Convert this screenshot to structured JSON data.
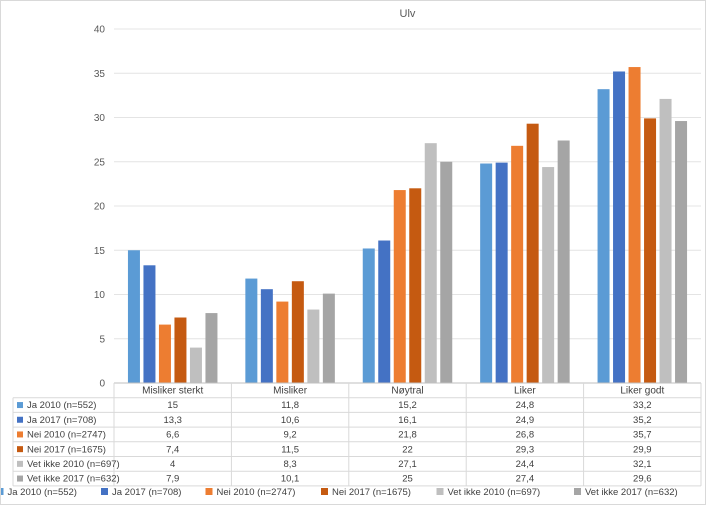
{
  "chart_data": {
    "type": "bar",
    "title": "Ulv",
    "xlabel": "",
    "ylabel": "",
    "ylim": [
      0,
      40
    ],
    "yticks": [
      "0",
      "5",
      "10",
      "15",
      "20",
      "25",
      "30",
      "35",
      "40"
    ],
    "categories": [
      "Misliker sterkt",
      "Misliker",
      "Nøytral",
      "Liker",
      "Liker godt"
    ],
    "series": [
      {
        "name": "Ja 2010 (n=552)",
        "color": "#5b9bd5",
        "values": [
          15,
          11.8,
          15.2,
          24.8,
          33.2
        ],
        "labels": [
          "15",
          "11,8",
          "15,2",
          "24,8",
          "33,2"
        ]
      },
      {
        "name": "Ja 2017 (n=708)",
        "color": "#4472c4",
        "values": [
          13.3,
          10.6,
          16.1,
          24.9,
          35.2
        ],
        "labels": [
          "13,3",
          "10,6",
          "16,1",
          "24,9",
          "35,2"
        ]
      },
      {
        "name": "Nei 2010 (n=2747)",
        "color": "#ed7d31",
        "values": [
          6.6,
          9.2,
          21.8,
          26.8,
          35.7
        ],
        "labels": [
          "6,6",
          "9,2",
          "21,8",
          "26,8",
          "35,7"
        ]
      },
      {
        "name": "Nei 2017 (n=1675)",
        "color": "#c55a11",
        "values": [
          7.4,
          11.5,
          22,
          29.3,
          29.9
        ],
        "labels": [
          "7,4",
          "11,5",
          "22",
          "29,3",
          "29,9"
        ]
      },
      {
        "name": "Vet ikke 2010 (n=697)",
        "color": "#bfbfbf",
        "values": [
          4,
          8.3,
          27.1,
          24.4,
          32.1
        ],
        "labels": [
          "4",
          "8,3",
          "27,1",
          "24,4",
          "32,1"
        ]
      },
      {
        "name": "Vet ikke 2017 (n=632)",
        "color": "#a5a5a5",
        "values": [
          7.9,
          10.1,
          25,
          27.4,
          29.6
        ],
        "labels": [
          "7,9",
          "10,1",
          "25",
          "27,4",
          "29,6"
        ]
      }
    ],
    "grid": true,
    "legend": "bottom",
    "data_table": true
  }
}
